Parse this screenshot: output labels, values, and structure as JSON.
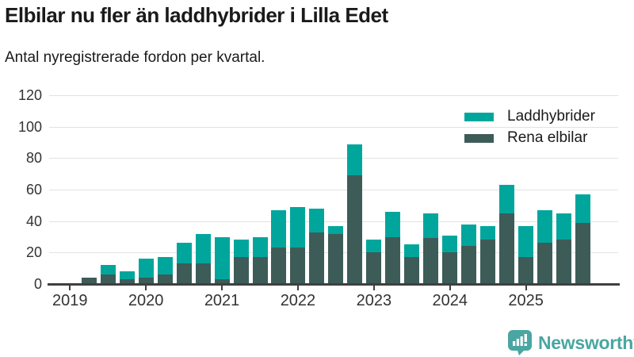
{
  "header": {
    "title": "Elbilar nu fler än laddhybrider i Lilla Edet",
    "subtitle": "Antal nyregistrerade fordon per kvartal."
  },
  "colors": {
    "laddhybrider": "#00a69c",
    "rena_elbilar": "#3d5c58",
    "gridline": "#e2e2e2",
    "axis": "#3f3f3f",
    "text": "#1a1a1a",
    "tick_text": "#333333",
    "brand_teal": "#4aa6a1"
  },
  "legend": {
    "items": [
      {
        "label": "Laddhybrider",
        "color": "#00a69c"
      },
      {
        "label": "Rena elbilar",
        "color": "#3d5c58"
      }
    ]
  },
  "branding": {
    "logo_text": "Newsworthy",
    "logo_icon": "bar-chart-speech-bubble-icon"
  },
  "chart_data": {
    "type": "bar",
    "stacked": true,
    "stack_bottom": "Rena elbilar",
    "title": "Elbilar nu fler än laddhybrider i Lilla Edet",
    "subtitle": "Antal nyregistrerade fordon per kvartal.",
    "categories": [
      "2019 Q1",
      "2019 Q2",
      "2019 Q3",
      "2019 Q4",
      "2020 Q1",
      "2020 Q2",
      "2020 Q3",
      "2020 Q4",
      "2021 Q1",
      "2021 Q2",
      "2021 Q3",
      "2021 Q4",
      "2022 Q1",
      "2022 Q2",
      "2022 Q3",
      "2022 Q4",
      "2023 Q1",
      "2023 Q2",
      "2023 Q3",
      "2023 Q4",
      "2024 Q1",
      "2024 Q2",
      "2024 Q3",
      "2024 Q4",
      "2025 Q1",
      "2025 Q2",
      "2025 Q3",
      "2025 Q4"
    ],
    "series": [
      {
        "name": "Laddhybrider",
        "color": "#00a69c",
        "values": [
          0,
          0,
          6,
          5,
          12,
          11,
          13,
          19,
          27,
          11,
          13,
          24,
          26,
          15,
          5,
          20,
          8,
          16,
          8,
          16,
          11,
          14,
          9,
          18,
          20,
          21,
          17,
          18
        ]
      },
      {
        "name": "Rena elbilar",
        "color": "#3d5c58",
        "values": [
          0,
          4,
          6,
          3,
          4,
          6,
          13,
          13,
          3,
          17,
          17,
          23,
          23,
          33,
          32,
          69,
          20,
          30,
          17,
          29,
          20,
          24,
          28,
          45,
          17,
          26,
          28,
          39
        ]
      }
    ],
    "totals": [
      0,
      4,
      12,
      8,
      16,
      17,
      26,
      32,
      30,
      28,
      30,
      47,
      49,
      48,
      37,
      89,
      28,
      46,
      25,
      45,
      31,
      38,
      37,
      63,
      37,
      47,
      45,
      57
    ],
    "xlabel": "",
    "ylabel": "",
    "ylim": [
      0,
      120
    ],
    "yticks": [
      0,
      20,
      40,
      60,
      80,
      100,
      120
    ],
    "xticklabels": [
      "2019",
      "2020",
      "2021",
      "2022",
      "2023",
      "2024",
      "2025"
    ],
    "grid": "horizontal",
    "legend_position": "top-right"
  }
}
